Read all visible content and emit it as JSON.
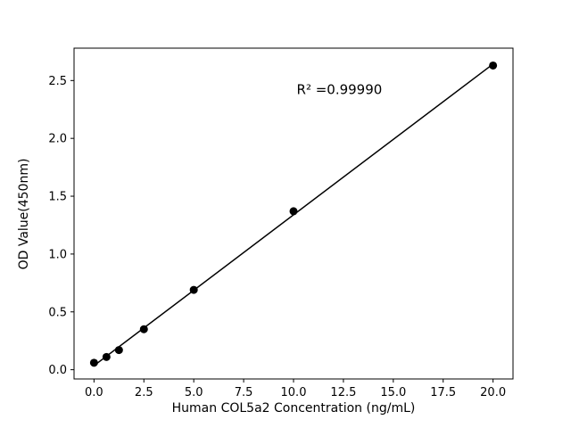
{
  "figure": {
    "background": "#ffffff"
  },
  "chart_data": {
    "type": "scatter",
    "title": "",
    "xlabel": "Human COL5a2 Concentration (ng/mL)",
    "ylabel": "OD Value(450nm)",
    "x": [
      0,
      0.625,
      1.25,
      2.5,
      5,
      10,
      20
    ],
    "y": [
      0.06,
      0.11,
      0.17,
      0.35,
      0.69,
      1.37,
      2.63
    ],
    "xlim": [
      -1,
      21
    ],
    "ylim": [
      -0.08,
      2.78
    ],
    "xticks": [
      0,
      2.5,
      5,
      7.5,
      10,
      12.5,
      15,
      17.5,
      20
    ],
    "xtick_labels": [
      "0.0",
      "2.5",
      "5.0",
      "7.5",
      "10.0",
      "12.5",
      "15.0",
      "17.5",
      "20.0"
    ],
    "yticks": [
      0,
      0.5,
      1.0,
      1.5,
      2.0,
      2.5
    ],
    "ytick_labels": [
      "0.0",
      "0.5",
      "1.0",
      "1.5",
      "2.0",
      "2.5"
    ],
    "annotation": {
      "text": "R² =0.99990",
      "x": 12.3,
      "y": 2.42
    },
    "fit": "linear",
    "marker_color": "#000000",
    "line_color": "#000000",
    "axis_color": "#000000",
    "grid": false,
    "legend": null
  }
}
